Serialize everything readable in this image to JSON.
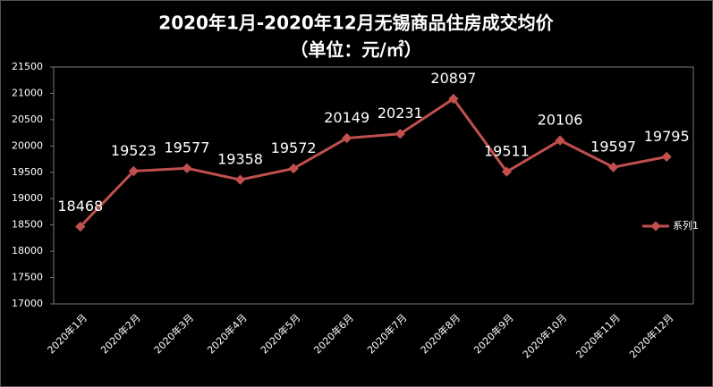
{
  "chart_data": {
    "type": "line",
    "title": "2020年1月-2020年12月无锡商品住房成交均价",
    "subtitle": "（单位：元/㎡）",
    "categories": [
      "2020年1月",
      "2020年2月",
      "2020年3月",
      "2020年4月",
      "2020年5月",
      "2020年6月",
      "2020年7月",
      "2020年8月",
      "2020年9月",
      "2020年10月",
      "2020年11月",
      "2020年12月"
    ],
    "series": [
      {
        "name": "系列1",
        "color": "#c0504d",
        "values": [
          18468,
          19523,
          19577,
          19358,
          19572,
          20149,
          20231,
          20897,
          19511,
          20106,
          19597,
          19795
        ]
      }
    ],
    "ylim": [
      17000,
      21500
    ],
    "yticks": [
      17000,
      17500,
      18000,
      18500,
      19000,
      19500,
      20000,
      20500,
      21000,
      21500
    ],
    "grid": false,
    "legend": "right"
  }
}
